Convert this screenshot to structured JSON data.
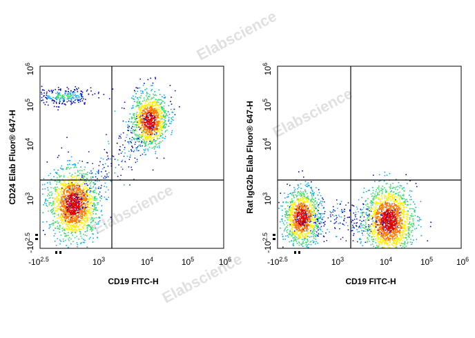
{
  "chart_data": [
    {
      "type": "scatter",
      "plot_kind": "flow cytometry density dot plot",
      "xlabel": "CD19 FITC-H",
      "ylabel": "CD24 Elab Fluor® 647-H",
      "x_ticks": [
        "-10^2.5",
        "10^3",
        "10^4",
        "10^5",
        "10^6"
      ],
      "y_ticks": [
        "-10^2.5",
        "10^3",
        "10^4",
        "10^5",
        "10^6"
      ],
      "gate": {
        "x": 1600,
        "y": 2200
      },
      "populations": [
        {
          "x": 350,
          "y": 900,
          "density": "highest",
          "note": "CD19- CD24low"
        },
        {
          "x": 11000,
          "y": 40000,
          "density": "high",
          "note": "CD19+ CD24+"
        },
        {
          "x": 250,
          "y": 170000,
          "density": "low",
          "note": "CD19- CD24high band"
        }
      ],
      "colors": [
        "#0000cc",
        "#00aaff",
        "#33dd66",
        "#ffee00",
        "#ff7700",
        "#dd0000"
      ]
    },
    {
      "type": "scatter",
      "plot_kind": "flow cytometry density dot plot",
      "xlabel": "CD19 FITC-H",
      "ylabel": "Rat IgG2b Elab Fluor® 647-H",
      "x_ticks": [
        "-10^2.5",
        "10^3",
        "10^4",
        "10^5",
        "10^6"
      ],
      "y_ticks": [
        "-10^2.5",
        "10^3",
        "10^4",
        "10^5",
        "10^6"
      ],
      "gate": {
        "x": 1600,
        "y": 2200
      },
      "populations": [
        {
          "x": 250,
          "y": 650,
          "density": "high",
          "note": "CD19- isotype"
        },
        {
          "x": 12000,
          "y": 600,
          "density": "highest",
          "note": "CD19+ isotype"
        }
      ],
      "colors": [
        "#0000cc",
        "#00aaff",
        "#33dd66",
        "#ffee00",
        "#ff7700",
        "#dd0000"
      ]
    }
  ],
  "watermark": "Elabscience"
}
